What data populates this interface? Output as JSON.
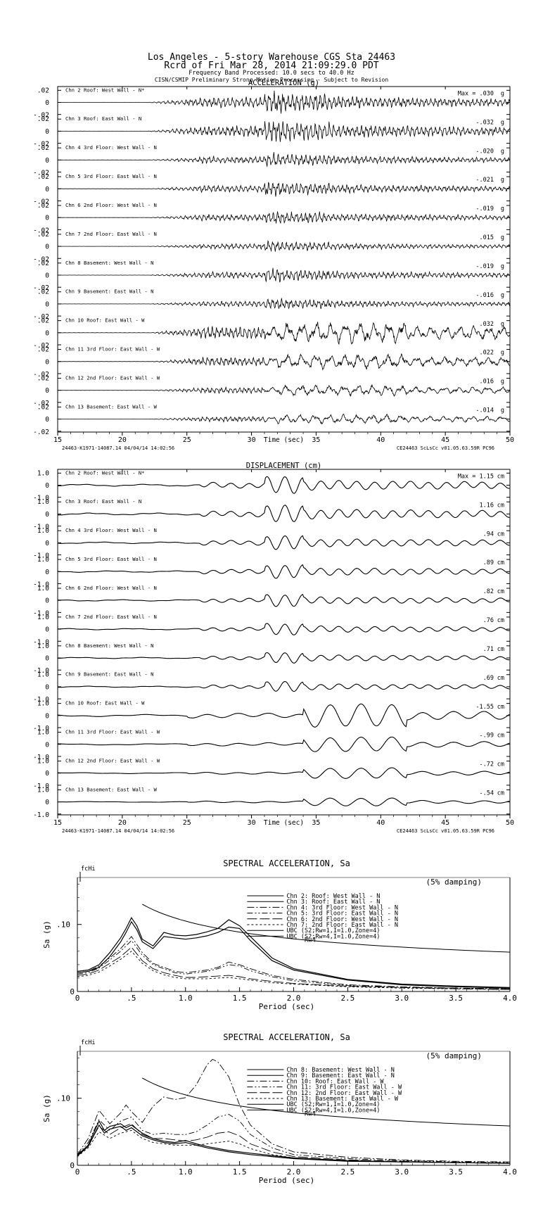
{
  "header": {
    "title_line1": "Los Angeles - 5-story Warehouse      CGS Sta 24463",
    "title_line2": "Rcrd of Fri Mar 28, 2014 21:09:29.0 PDT",
    "title_line3": "Frequency Band Processed: 10.0 secs to 40.0 Hz",
    "title_line4": "CISN/CSMIP Preliminary Strong Motion Processing - Subject to Revision"
  },
  "chart_data": [
    {
      "type": "line",
      "title": "ACCELERATION (g)",
      "xlabel": "Time (sec)",
      "xlim": [
        15,
        50
      ],
      "x_ticks": [
        "15",
        "20",
        "25",
        "30",
        "35",
        "40",
        "45",
        "50"
      ],
      "y_tick_labels": [
        ".02",
        "0",
        "-.02"
      ],
      "ylim": [
        -0.02,
        0.02
      ],
      "max_prefix": "Max =",
      "footer_left": "24463-K1971-14087.14 04/04/14 14:02:56",
      "footer_right": "CE24463  ScLsCc  v01.05.63.59R PC96",
      "series": [
        {
          "name": "Chn 2  Roof: West Wall - N*",
          "max": ".030",
          "unit": "g"
        },
        {
          "name": "Chn 3  Roof: East Wall - N",
          "max": "-.032",
          "unit": "g"
        },
        {
          "name": "Chn 4  3rd Floor: West Wall - N",
          "max": "-.020",
          "unit": "g"
        },
        {
          "name": "Chn 5  3rd Floor: East Wall - N",
          "max": "-.021",
          "unit": "g"
        },
        {
          "name": "Chn 6  2nd Floor: West Wall - N",
          "max": "-.019",
          "unit": "g"
        },
        {
          "name": "Chn 7  2nd Floor: East Wall - N",
          "max": ".015",
          "unit": "g"
        },
        {
          "name": "Chn 8  Basement: West Wall - N",
          "max": "-.019",
          "unit": "g"
        },
        {
          "name": "Chn 9  Basement: East Wall - N",
          "max": "-.016",
          "unit": "g"
        },
        {
          "name": "Chn 10  Roof: East Wall - W",
          "max": ".032",
          "unit": "g"
        },
        {
          "name": "Chn 11  3rd Floor: East Wall - W",
          "max": ".022",
          "unit": "g"
        },
        {
          "name": "Chn 12  2nd Floor: East Wall - W",
          "max": ".016",
          "unit": "g"
        },
        {
          "name": "Chn 13  Basement: East Wall - W",
          "max": "-.014",
          "unit": "g"
        }
      ]
    },
    {
      "type": "line",
      "title": "DISPLACEMENT (cm)",
      "xlabel": "Time (sec)",
      "xlim": [
        15,
        50
      ],
      "x_ticks": [
        "15",
        "20",
        "25",
        "30",
        "35",
        "40",
        "45",
        "50"
      ],
      "y_tick_labels": [
        "1.0",
        "0",
        "-1.0"
      ],
      "ylim": [
        -1.0,
        1.0
      ],
      "max_prefix": "Max =",
      "footer_left": "24463-K1971-14087.14 04/04/14 14:02:56",
      "footer_right": "CE24463  ScLsCc  v01.05.63.59R PC96",
      "series": [
        {
          "name": "Chn 2  Roof: West Wall - N*",
          "max": "1.15",
          "unit": "cm"
        },
        {
          "name": "Chn 3  Roof: East Wall - N",
          "max": "1.16",
          "unit": "cm"
        },
        {
          "name": "Chn 4  3rd Floor: West Wall - N",
          "max": ".94",
          "unit": "cm"
        },
        {
          "name": "Chn 5  3rd Floor: East Wall - N",
          "max": ".89",
          "unit": "cm"
        },
        {
          "name": "Chn 6  2nd Floor: West Wall - N",
          "max": ".82",
          "unit": "cm"
        },
        {
          "name": "Chn 7  2nd Floor: East Wall - N",
          "max": ".76",
          "unit": "cm"
        },
        {
          "name": "Chn 8  Basement: West Wall - N",
          "max": ".71",
          "unit": "cm"
        },
        {
          "name": "Chn 9  Basement: East Wall - N",
          "max": ".69",
          "unit": "cm"
        },
        {
          "name": "Chn 10  Roof: East Wall - W",
          "max": "-1.55",
          "unit": "cm"
        },
        {
          "name": "Chn 11  3rd Floor: East Wall - W",
          "max": "-.99",
          "unit": "cm"
        },
        {
          "name": "Chn 12  2nd Floor: East Wall - W",
          "max": "-.72",
          "unit": "cm"
        },
        {
          "name": "Chn 13  Basement: East Wall - W",
          "max": "-.54",
          "unit": "cm"
        }
      ]
    },
    {
      "type": "line",
      "title": "SPECTRAL ACCELERATION, Sa",
      "note": "(5% damping)",
      "xlabel": "Period (sec)",
      "ylabel": "Sa (g)",
      "xlim": [
        0,
        4.0
      ],
      "ylim": [
        0,
        0.17
      ],
      "x_ticks": [
        "0",
        ".5",
        "1.0",
        "1.5",
        "2.0",
        "2.5",
        "3.0",
        "3.5",
        "4.0"
      ],
      "y_ticks": [
        "0",
        ".10"
      ],
      "marker_label": "fcHi",
      "curve_label": "Rw4",
      "legend": [
        "Chn 2: Roof: West Wall - N",
        "Chn 3: Roof: East Wall - N",
        "Chn 4: 3rd Floor: West Wall - N",
        "Chn 5: 3rd Floor: East Wall - N",
        "Chn 6: 2nd Floor: West Wall - N",
        "Chn 7: 2nd Floor: East Wall - N",
        "UBC (S2;Rw=1,I=1.0,Zone=4)",
        "UBC (S2;Rw=4,I=1.0,Zone=4)"
      ],
      "series": [
        {
          "period": [
            0,
            0.1,
            0.2,
            0.3,
            0.4,
            0.45,
            0.5,
            0.55,
            0.6,
            0.7,
            0.8,
            0.9,
            1.0,
            1.1,
            1.2,
            1.3,
            1.4,
            1.5,
            1.6,
            1.8,
            2.0,
            2.5,
            3.0,
            3.5,
            4.0
          ],
          "sa": [
            0.03,
            0.032,
            0.04,
            0.058,
            0.08,
            0.094,
            0.11,
            0.098,
            0.078,
            0.068,
            0.088,
            0.084,
            0.083,
            0.085,
            0.089,
            0.094,
            0.107,
            0.098,
            0.082,
            0.05,
            0.034,
            0.018,
            0.011,
            0.008,
            0.006
          ]
        },
        {
          "period": [
            0,
            0.1,
            0.2,
            0.3,
            0.4,
            0.45,
            0.5,
            0.55,
            0.6,
            0.7,
            0.8,
            0.9,
            1.0,
            1.1,
            1.2,
            1.3,
            1.4,
            1.5,
            1.6,
            1.8,
            2.0,
            2.5,
            3.0,
            3.5,
            4.0
          ],
          "sa": [
            0.028,
            0.03,
            0.036,
            0.052,
            0.074,
            0.088,
            0.104,
            0.092,
            0.074,
            0.064,
            0.082,
            0.08,
            0.078,
            0.08,
            0.083,
            0.088,
            0.096,
            0.094,
            0.076,
            0.046,
            0.032,
            0.017,
            0.01,
            0.007,
            0.005
          ]
        },
        {
          "period": [
            0,
            0.1,
            0.2,
            0.3,
            0.4,
            0.5,
            0.6,
            0.7,
            0.8,
            0.9,
            1.0,
            1.1,
            1.2,
            1.3,
            1.4,
            1.5,
            1.6,
            1.8,
            2.0,
            2.5,
            3.0,
            3.5,
            4.0
          ],
          "sa": [
            0.028,
            0.03,
            0.038,
            0.05,
            0.064,
            0.082,
            0.058,
            0.042,
            0.036,
            0.03,
            0.028,
            0.03,
            0.032,
            0.036,
            0.044,
            0.04,
            0.034,
            0.024,
            0.018,
            0.01,
            0.007,
            0.005,
            0.004
          ]
        },
        {
          "period": [
            0,
            0.1,
            0.2,
            0.3,
            0.4,
            0.5,
            0.6,
            0.7,
            0.8,
            0.9,
            1.0,
            1.1,
            1.2,
            1.3,
            1.4,
            1.5,
            1.6,
            1.8,
            2.0,
            2.5,
            3.0,
            3.5,
            4.0
          ],
          "sa": [
            0.026,
            0.028,
            0.035,
            0.047,
            0.06,
            0.076,
            0.054,
            0.04,
            0.034,
            0.028,
            0.026,
            0.028,
            0.03,
            0.034,
            0.04,
            0.038,
            0.031,
            0.022,
            0.016,
            0.009,
            0.006,
            0.005,
            0.004
          ]
        },
        {
          "period": [
            0,
            0.1,
            0.2,
            0.3,
            0.4,
            0.5,
            0.6,
            0.7,
            0.8,
            0.9,
            1.0,
            1.1,
            1.2,
            1.3,
            1.4,
            1.5,
            1.6,
            1.8,
            2.0,
            2.5,
            3.0,
            3.5,
            4.0
          ],
          "sa": [
            0.024,
            0.026,
            0.032,
            0.042,
            0.052,
            0.066,
            0.046,
            0.034,
            0.028,
            0.024,
            0.021,
            0.021,
            0.022,
            0.023,
            0.024,
            0.022,
            0.019,
            0.015,
            0.012,
            0.008,
            0.006,
            0.004,
            0.003
          ]
        },
        {
          "period": [
            0,
            0.1,
            0.2,
            0.3,
            0.4,
            0.5,
            0.6,
            0.7,
            0.8,
            0.9,
            1.0,
            1.1,
            1.2,
            1.3,
            1.4,
            1.5,
            1.6,
            1.8,
            2.0,
            2.5,
            3.0,
            3.5,
            4.0
          ],
          "sa": [
            0.022,
            0.024,
            0.029,
            0.038,
            0.048,
            0.06,
            0.042,
            0.031,
            0.025,
            0.021,
            0.019,
            0.019,
            0.019,
            0.02,
            0.021,
            0.019,
            0.017,
            0.013,
            0.011,
            0.007,
            0.005,
            0.004,
            0.003
          ]
        }
      ]
    },
    {
      "type": "line",
      "title": "SPECTRAL ACCELERATION, Sa",
      "note": "(5% damping)",
      "xlabel": "Period (sec)",
      "ylabel": "Sa (g)",
      "xlim": [
        0,
        4.0
      ],
      "ylim": [
        0,
        0.17
      ],
      "x_ticks": [
        "0",
        ".5",
        "1.0",
        "1.5",
        "2.0",
        "2.5",
        "3.0",
        "3.5",
        "4.0"
      ],
      "y_ticks": [
        "0",
        ".10"
      ],
      "marker_label": "fcHi",
      "curve_label": "Rw4",
      "legend": [
        "Chn 8: Basement: West Wall - N",
        "Chn 9: Basement: East Wall - N",
        "Chn 10: Roof: East Wall - W",
        "Chn 11: 3rd Floor: East Wall - W",
        "Chn 12: 2nd Floor: East Wall - W",
        "Chn 13: Basement: East Wall - W",
        "UBC (S2;Rw=1,I=1.0,Zone=4)",
        "UBC (S2;Rw=4,I=1.0,Zone=4)"
      ],
      "series": [
        {
          "period": [
            0,
            0.1,
            0.2,
            0.25,
            0.3,
            0.4,
            0.45,
            0.5,
            0.6,
            0.7,
            0.8,
            0.9,
            1.0,
            1.1,
            1.2,
            1.4,
            1.6,
            2.0,
            2.5,
            3.0,
            3.5,
            4.0
          ],
          "sa": [
            0.015,
            0.03,
            0.066,
            0.052,
            0.058,
            0.062,
            0.056,
            0.06,
            0.048,
            0.04,
            0.036,
            0.034,
            0.037,
            0.032,
            0.028,
            0.022,
            0.018,
            0.011,
            0.007,
            0.005,
            0.004,
            0.003
          ]
        },
        {
          "period": [
            0,
            0.1,
            0.2,
            0.25,
            0.3,
            0.4,
            0.45,
            0.5,
            0.6,
            0.7,
            0.8,
            0.9,
            1.0,
            1.1,
            1.2,
            1.4,
            1.6,
            2.0,
            2.5,
            3.0,
            3.5,
            4.0
          ],
          "sa": [
            0.014,
            0.028,
            0.06,
            0.048,
            0.054,
            0.058,
            0.052,
            0.056,
            0.044,
            0.038,
            0.034,
            0.032,
            0.034,
            0.03,
            0.026,
            0.02,
            0.016,
            0.01,
            0.006,
            0.005,
            0.004,
            0.003
          ]
        },
        {
          "period": [
            0,
            0.1,
            0.2,
            0.3,
            0.4,
            0.45,
            0.5,
            0.6,
            0.7,
            0.8,
            0.9,
            1.0,
            1.1,
            1.2,
            1.25,
            1.3,
            1.4,
            1.5,
            1.6,
            1.8,
            2.0,
            2.5,
            3.0,
            3.5,
            4.0
          ],
          "sa": [
            0.016,
            0.04,
            0.082,
            0.062,
            0.078,
            0.09,
            0.08,
            0.064,
            0.088,
            0.102,
            0.098,
            0.101,
            0.12,
            0.15,
            0.158,
            0.154,
            0.132,
            0.09,
            0.06,
            0.032,
            0.02,
            0.012,
            0.008,
            0.006,
            0.005
          ]
        },
        {
          "period": [
            0,
            0.1,
            0.2,
            0.3,
            0.4,
            0.5,
            0.6,
            0.7,
            0.8,
            0.9,
            1.0,
            1.1,
            1.2,
            1.3,
            1.4,
            1.5,
            1.6,
            1.8,
            2.0,
            2.5,
            3.0,
            3.5,
            4.0
          ],
          "sa": [
            0.015,
            0.034,
            0.068,
            0.052,
            0.066,
            0.072,
            0.052,
            0.046,
            0.048,
            0.046,
            0.046,
            0.05,
            0.06,
            0.072,
            0.076,
            0.066,
            0.046,
            0.026,
            0.016,
            0.01,
            0.007,
            0.005,
            0.004
          ]
        },
        {
          "period": [
            0,
            0.1,
            0.2,
            0.3,
            0.4,
            0.5,
            0.6,
            0.7,
            0.8,
            0.9,
            1.0,
            1.1,
            1.2,
            1.3,
            1.4,
            1.5,
            1.6,
            1.8,
            2.0,
            2.5,
            3.0,
            3.5,
            4.0
          ],
          "sa": [
            0.014,
            0.03,
            0.058,
            0.046,
            0.056,
            0.062,
            0.046,
            0.04,
            0.04,
            0.038,
            0.036,
            0.038,
            0.042,
            0.048,
            0.05,
            0.044,
            0.032,
            0.02,
            0.013,
            0.008,
            0.006,
            0.004,
            0.003
          ]
        },
        {
          "period": [
            0,
            0.1,
            0.2,
            0.3,
            0.4,
            0.5,
            0.6,
            0.7,
            0.8,
            0.9,
            1.0,
            1.1,
            1.2,
            1.3,
            1.4,
            1.5,
            1.6,
            1.8,
            2.0,
            2.5,
            3.0,
            3.5,
            4.0
          ],
          "sa": [
            0.013,
            0.026,
            0.05,
            0.04,
            0.048,
            0.052,
            0.04,
            0.034,
            0.032,
            0.03,
            0.03,
            0.03,
            0.032,
            0.034,
            0.036,
            0.032,
            0.025,
            0.016,
            0.011,
            0.007,
            0.005,
            0.004,
            0.003
          ]
        }
      ]
    }
  ]
}
